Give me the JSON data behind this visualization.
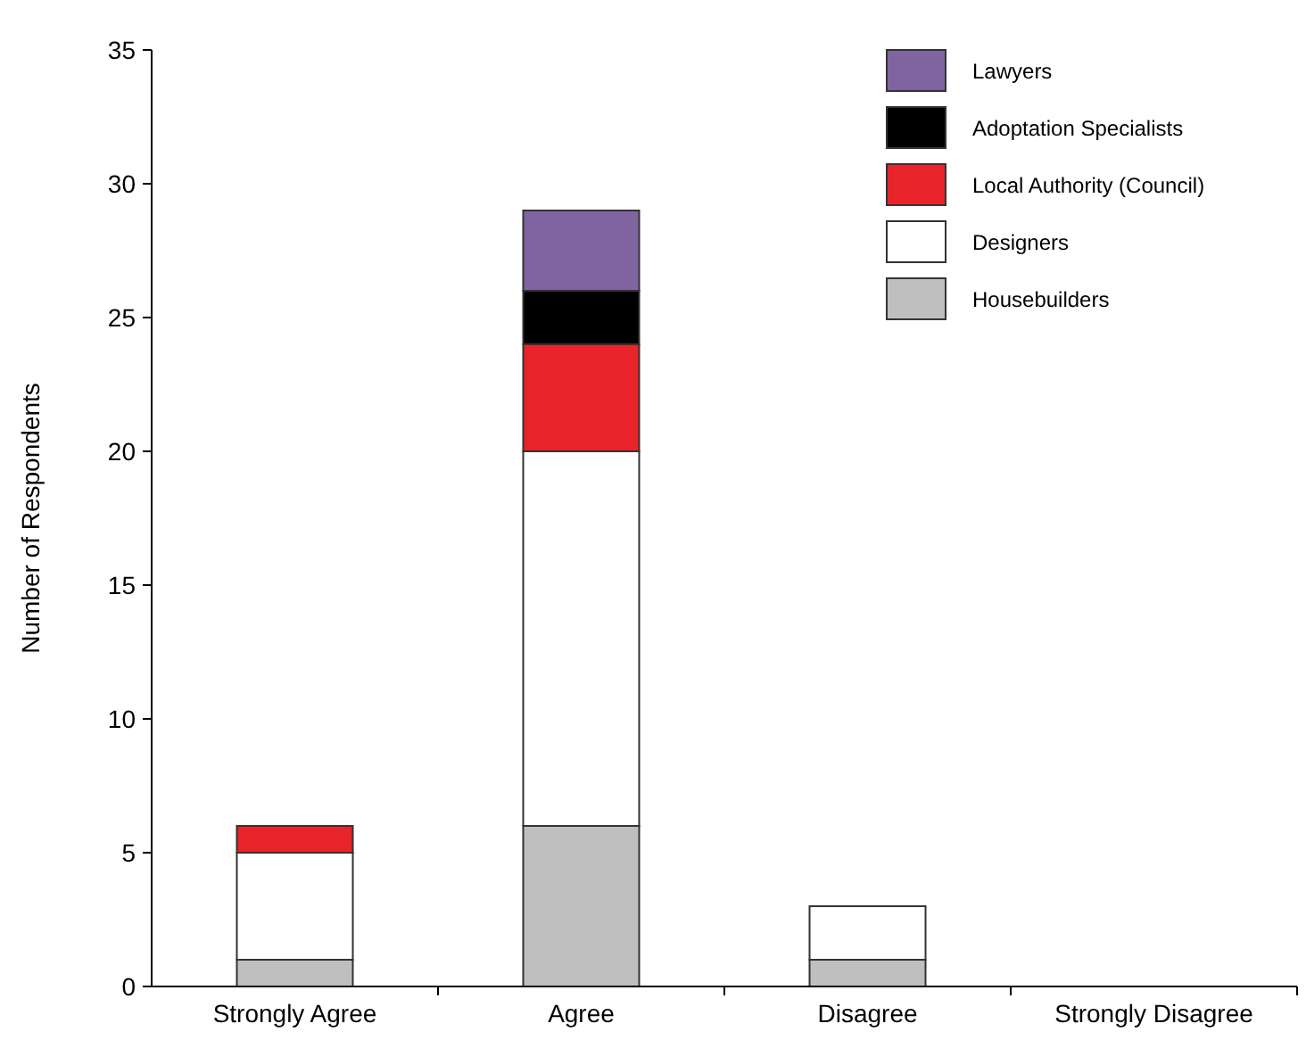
{
  "chart_data": {
    "type": "bar",
    "stacked": true,
    "ylabel": "Number of Respondents",
    "categories": [
      "Strongly Agree",
      "Agree",
      "Disagree",
      "Strongly Disagree"
    ],
    "series": [
      {
        "name": "Housebuilders",
        "color": "#bfbfbf",
        "values": [
          1,
          6,
          1,
          0
        ]
      },
      {
        "name": "Designers",
        "color": "#ffffff",
        "values": [
          4,
          14,
          2,
          0
        ]
      },
      {
        "name": "Local Authority (Council)",
        "color": "#e8232a",
        "values": [
          1,
          4,
          0,
          0
        ]
      },
      {
        "name": "Adoptation Specialists",
        "color": "#000000",
        "values": [
          0,
          2,
          0,
          0
        ]
      },
      {
        "name": "Lawyers",
        "color": "#8064a2",
        "values": [
          0,
          3,
          0,
          0
        ]
      }
    ],
    "ylim": [
      0,
      35
    ],
    "yticks": [
      0,
      5,
      10,
      15,
      20,
      25,
      30,
      35
    ],
    "grid": false,
    "legend": "top right"
  }
}
